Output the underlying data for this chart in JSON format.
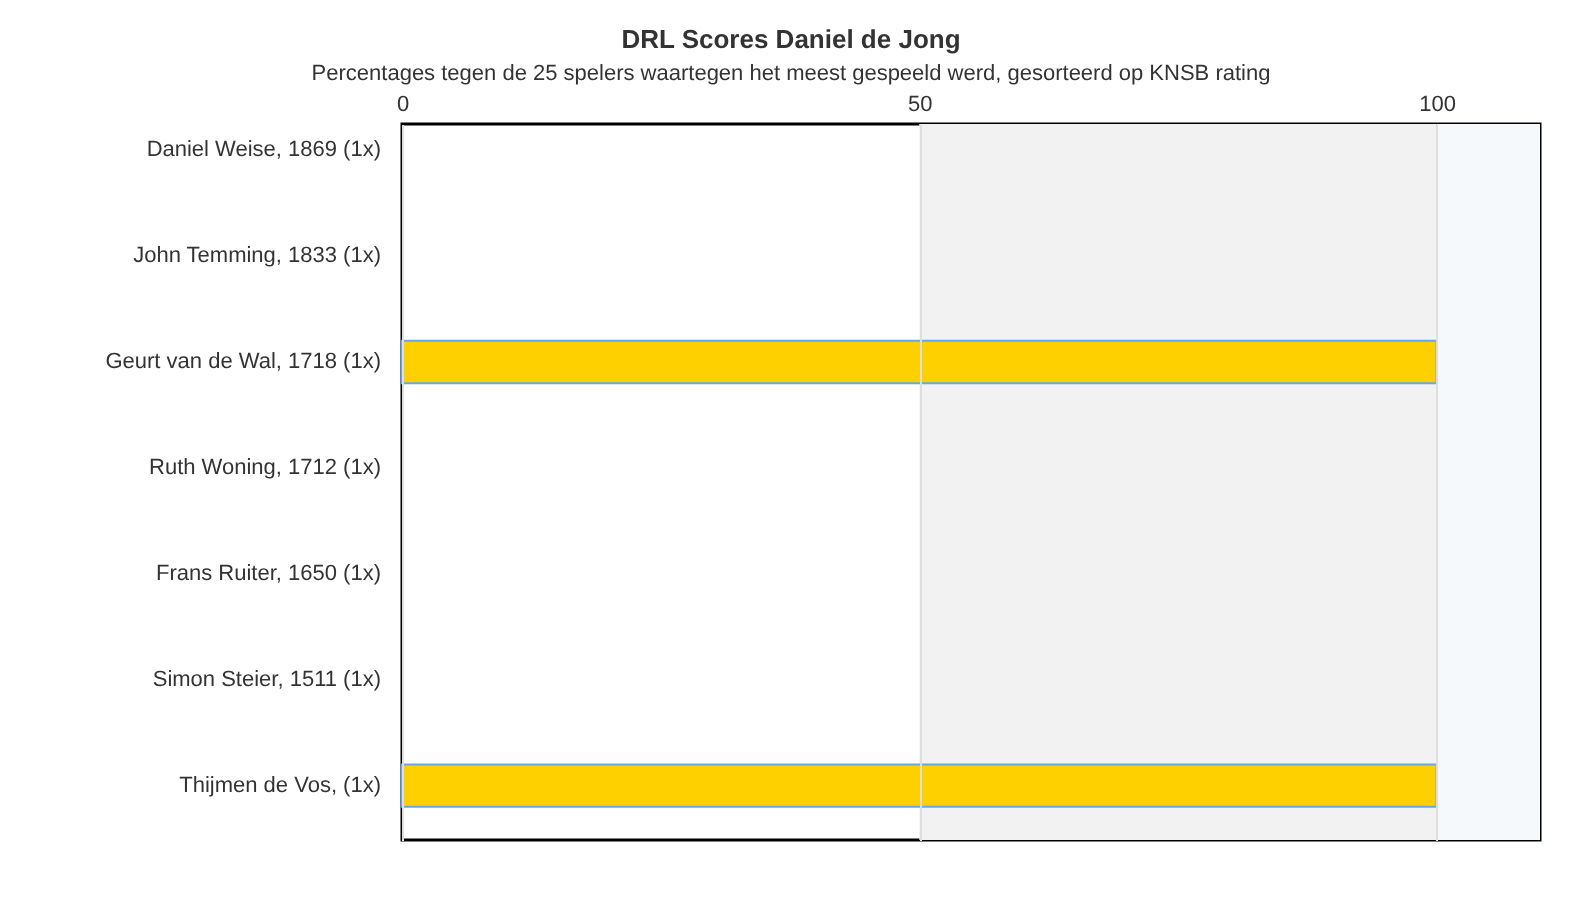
{
  "chart_data": {
    "type": "bar",
    "orientation": "horizontal",
    "title": "DRL Scores Daniel de Jong",
    "subtitle": "Percentages tegen de 25 spelers waartegen het meest gespeeld werd, gesorteerd op KNSB rating",
    "categories": [
      "Daniel Weise, 1869 (1x)",
      "John Temming, 1833 (1x)",
      "Geurt van de Wal, 1718 (1x)",
      "Ruth Woning, 1712 (1x)",
      "Frans Ruiter, 1650 (1x)",
      "Simon Steier, 1511 (1x)",
      "Thijmen de Vos,  (1x)"
    ],
    "values": [
      0,
      0,
      100,
      0,
      0,
      0,
      100
    ],
    "color": "#ffd000",
    "xlim": [
      0,
      110
    ],
    "xticks": [
      0,
      50,
      100
    ],
    "grid": "x",
    "bands": [
      {
        "axis": "x",
        "from": 50,
        "to": 100,
        "color": "#f2f2f2"
      },
      {
        "axis": "x",
        "from": 100,
        "to": 110,
        "color": "#f6f9fc"
      }
    ]
  }
}
